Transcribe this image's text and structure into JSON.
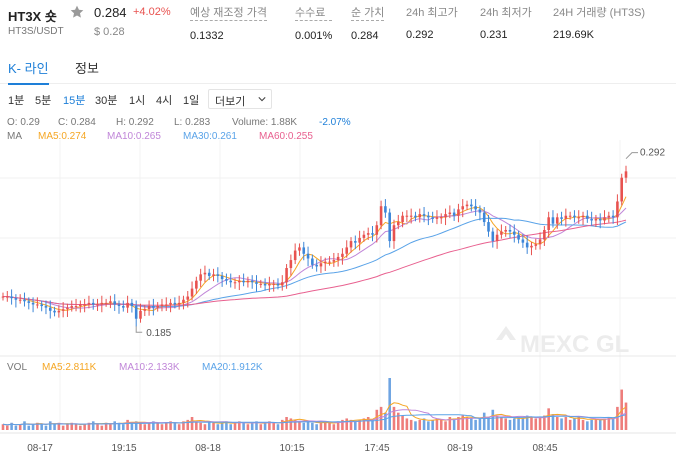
{
  "header": {
    "symbol": "HT3X 숏",
    "pair": "HT3S/USDT",
    "price": "0.284",
    "change": "+4.02%",
    "price_usd": "$ 0.28",
    "stats": [
      {
        "label": "예상 재조정 가격",
        "value": "0.1332",
        "dotted": true
      },
      {
        "label": "수수료",
        "value": "0.001%",
        "dotted": true
      },
      {
        "label": "순 가치",
        "value": "0.284",
        "dotted": true
      },
      {
        "label": "24h 최고가",
        "value": "0.292",
        "dotted": false
      },
      {
        "label": "24h 최저가",
        "value": "0.231",
        "dotted": false
      },
      {
        "label": "24H 거래량 (HT3S)",
        "value": "219.69K",
        "dotted": false
      }
    ]
  },
  "tabs": [
    {
      "label": "K- 라인",
      "active": true
    },
    {
      "label": "정보",
      "active": false
    }
  ],
  "intervals": [
    {
      "label": "1분",
      "active": false
    },
    {
      "label": "5분",
      "active": false
    },
    {
      "label": "15분",
      "active": true
    },
    {
      "label": "30분",
      "active": false
    },
    {
      "label": "1시",
      "active": false
    },
    {
      "label": "4시",
      "active": false
    },
    {
      "label": "1일",
      "active": false
    }
  ],
  "more_label": "더보기",
  "ohlc": {
    "open": "O: 0.29",
    "close": "C: 0.284",
    "high": "H: 0.292",
    "low": "L: 0.283",
    "volume": "Volume: 1.88K",
    "change": "-2.07%"
  },
  "ma_line": {
    "label": "MA",
    "items": [
      {
        "text": "MA5:0.274",
        "color": "#f5a623"
      },
      {
        "text": "MA10:0.265",
        "color": "#c086d8"
      },
      {
        "text": "MA30:0.261",
        "color": "#5aa3e8"
      },
      {
        "text": "MA60:0.255",
        "color": "#e8608f"
      }
    ]
  },
  "vol_line": {
    "label": "VOL",
    "items": [
      {
        "text": "MA5:2.811K",
        "color": "#f5a623"
      },
      {
        "text": "MA10:2.133K",
        "color": "#c086d8"
      },
      {
        "text": "MA20:1.912K",
        "color": "#5aa3e8"
      }
    ]
  },
  "watermark": "MEXC GL",
  "colors": {
    "up": "#e8524f",
    "down": "#3d86d8",
    "accent": "#1e7fd8"
  },
  "chart_data": {
    "type": "candlestick",
    "interval": "15분",
    "x_ticks": [
      "08-17",
      "19:15",
      "08-18",
      "10:15",
      "17:45",
      "08-19",
      "08:45"
    ],
    "high_marker": "0.292",
    "low_marker": "0.185",
    "price_range": [
      0.17,
      0.3
    ],
    "close_path": [
      0.205,
      0.205,
      0.204,
      0.203,
      0.203,
      0.202,
      0.201,
      0.2,
      0.2,
      0.199,
      0.198,
      0.196,
      0.195,
      0.196,
      0.197,
      0.198,
      0.199,
      0.199,
      0.2,
      0.2,
      0.201,
      0.2,
      0.2,
      0.201,
      0.201,
      0.202,
      0.2,
      0.199,
      0.198,
      0.201,
      0.199,
      0.191,
      0.196,
      0.197,
      0.199,
      0.198,
      0.199,
      0.2,
      0.2,
      0.201,
      0.2,
      0.201,
      0.203,
      0.205,
      0.21,
      0.215,
      0.219,
      0.22,
      0.218,
      0.219,
      0.218,
      0.216,
      0.215,
      0.214,
      0.214,
      0.215,
      0.214,
      0.215,
      0.214,
      0.213,
      0.213,
      0.212,
      0.213,
      0.213,
      0.212,
      0.214,
      0.223,
      0.228,
      0.234,
      0.236,
      0.232,
      0.229,
      0.225,
      0.224,
      0.226,
      0.227,
      0.227,
      0.228,
      0.23,
      0.232,
      0.236,
      0.24,
      0.239,
      0.242,
      0.244,
      0.245,
      0.244,
      0.25,
      0.262,
      0.258,
      0.24,
      0.25,
      0.252,
      0.256,
      0.256,
      0.256,
      0.255,
      0.257,
      0.256,
      0.255,
      0.254,
      0.255,
      0.255,
      0.257,
      0.258,
      0.256,
      0.26,
      0.262,
      0.263,
      0.262,
      0.26,
      0.258,
      0.252,
      0.246,
      0.24,
      0.244,
      0.246,
      0.247,
      0.246,
      0.244,
      0.241,
      0.239,
      0.236,
      0.237,
      0.238,
      0.241,
      0.247,
      0.255,
      0.251,
      0.255,
      0.254,
      0.256,
      0.256,
      0.255,
      0.255,
      0.256,
      0.254,
      0.253,
      0.254,
      0.253,
      0.255,
      0.256,
      0.255,
      0.265,
      0.28,
      0.284
    ],
    "volume_path": [
      0.4,
      0.3,
      0.5,
      0.3,
      0.4,
      0.6,
      0.3,
      0.4,
      0.5,
      0.4,
      0.3,
      0.6,
      0.4,
      0.5,
      0.3,
      0.4,
      0.5,
      0.4,
      0.3,
      0.4,
      0.5,
      0.6,
      0.4,
      0.3,
      0.5,
      0.4,
      0.6,
      0.5,
      0.4,
      0.7,
      0.5,
      0.6,
      0.5,
      0.4,
      0.5,
      0.6,
      0.5,
      0.4,
      0.5,
      0.6,
      0.5,
      0.4,
      0.6,
      0.7,
      0.9,
      0.6,
      0.5,
      0.4,
      0.6,
      0.5,
      0.4,
      0.5,
      0.6,
      0.4,
      0.5,
      0.6,
      0.5,
      0.4,
      0.5,
      0.6,
      0.4,
      0.5,
      0.6,
      0.5,
      0.4,
      0.7,
      0.9,
      0.8,
      0.7,
      0.6,
      0.5,
      0.6,
      0.5,
      0.4,
      0.5,
      0.6,
      0.5,
      0.4,
      0.6,
      0.7,
      0.8,
      0.7,
      0.6,
      0.7,
      0.8,
      0.9,
      0.7,
      1.4,
      1.6,
      1.2,
      3.6,
      1.6,
      1.2,
      1.0,
      0.8,
      0.7,
      0.6,
      0.7,
      0.8,
      0.6,
      0.7,
      0.8,
      0.7,
      0.6,
      0.9,
      0.8,
      0.9,
      1.0,
      0.9,
      0.8,
      0.7,
      0.8,
      1.2,
      0.9,
      1.4,
      1.0,
      0.9,
      0.8,
      0.7,
      0.8,
      0.9,
      0.8,
      1.0,
      0.9,
      0.8,
      0.9,
      1.0,
      1.5,
      1.1,
      0.9,
      0.8,
      0.9,
      0.7,
      0.8,
      0.9,
      0.7,
      0.6,
      0.7,
      0.8,
      0.7,
      0.8,
      0.9,
      0.8,
      1.6,
      2.8,
      1.9
    ]
  }
}
